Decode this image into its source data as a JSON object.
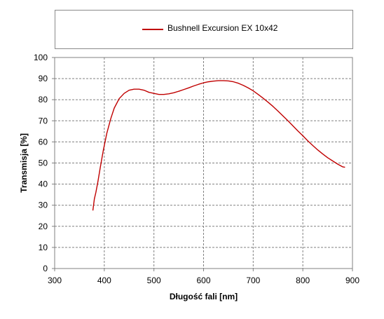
{
  "chart_data": {
    "type": "line",
    "title": "",
    "xlabel": "Długość fali [nm]",
    "ylabel": "Transmisja [%]",
    "xlim": [
      300,
      900
    ],
    "ylim": [
      0,
      100
    ],
    "x_ticks": [
      300,
      400,
      500,
      600,
      700,
      800,
      900
    ],
    "y_ticks": [
      0,
      10,
      20,
      30,
      40,
      50,
      60,
      70,
      80,
      90,
      100
    ],
    "grid": true,
    "legend": {
      "placement": "top"
    },
    "colors": {
      "series": "#c00000",
      "grid": "#808080",
      "axis": "#808080"
    },
    "series": [
      {
        "name": "Bushnell Excursion EX 10x42",
        "x": [
          377,
          380,
          383,
          387,
          392,
          398,
          405,
          413,
          420,
          430,
          440,
          450,
          460,
          470,
          480,
          490,
          500,
          510,
          520,
          530,
          540,
          550,
          560,
          570,
          580,
          590,
          600,
          610,
          620,
          630,
          640,
          650,
          660,
          670,
          680,
          690,
          700,
          710,
          720,
          730,
          740,
          750,
          760,
          770,
          780,
          790,
          800,
          810,
          820,
          830,
          840,
          850,
          860,
          870,
          880,
          885
        ],
        "y": [
          27.5,
          33,
          36,
          41,
          48,
          56,
          64,
          71,
          76,
          80.5,
          83,
          84.5,
          85,
          85,
          84.5,
          83.5,
          83,
          82.5,
          82.5,
          82.8,
          83.3,
          84,
          84.8,
          85.6,
          86.5,
          87.3,
          88,
          88.5,
          88.8,
          89,
          89,
          88.9,
          88.5,
          87.8,
          86.8,
          85.6,
          84.2,
          82.5,
          80.7,
          78.8,
          76.8,
          74.6,
          72.3,
          70,
          67.6,
          65.2,
          62.9,
          60.5,
          58.3,
          56.2,
          54.3,
          52.5,
          51,
          49.5,
          48.2,
          48
        ]
      }
    ]
  }
}
